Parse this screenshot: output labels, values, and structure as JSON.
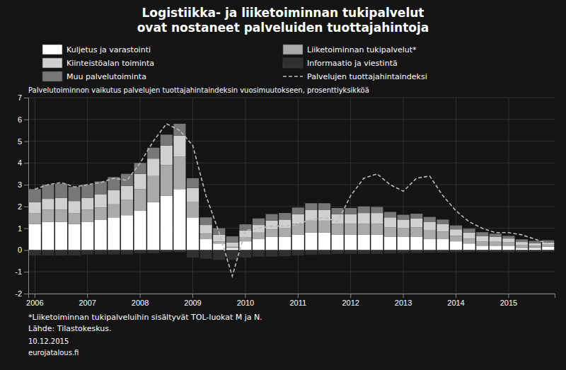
{
  "chart_data": {
    "type": "bar",
    "stacked": true,
    "grid": true,
    "title": "Logistiikka- ja liiketoiminnan tukipalvelut\novat nostaneet palveluiden tuottajahintoja",
    "subtitle": "Palvelutoiminnon vaikutus palvelujen tuottajahintaindeksin vuosimuutokseen, prosenttiyksikköä",
    "annotations": [
      "*Liiketoiminnan tukipalveluihin sisältyvät TOL-luokat M ja N.",
      "Lähde: Tilastokeskus.",
      "10.12.2015",
      "eurojatalous.fi"
    ],
    "categories": [
      "2006",
      null,
      null,
      null,
      "2007",
      null,
      null,
      null,
      "2008",
      null,
      null,
      null,
      "2009",
      null,
      null,
      null,
      "2010",
      null,
      null,
      null,
      "2011",
      null,
      null,
      null,
      "2012",
      null,
      null,
      null,
      "2013",
      null,
      null,
      null,
      "2014",
      null,
      null,
      null,
      "2015",
      null,
      null,
      null
    ],
    "ylim": [
      -2,
      7
    ],
    "yticks": [
      -2,
      -1,
      0,
      1,
      2,
      3,
      4,
      5,
      6,
      7
    ],
    "series": [
      {
        "name": "Kuljetus ja varastointi",
        "type": "bar",
        "color": "#ffffff",
        "values": [
          1.2,
          1.3,
          1.3,
          1.2,
          1.3,
          1.4,
          1.5,
          1.6,
          1.8,
          2.2,
          2.5,
          2.8,
          1.5,
          0.5,
          0.3,
          0.1,
          0.4,
          0.5,
          0.6,
          0.6,
          0.7,
          0.8,
          0.8,
          0.7,
          0.7,
          0.7,
          0.7,
          0.6,
          0.6,
          0.6,
          0.5,
          0.5,
          0.4,
          0.3,
          0.2,
          0.2,
          0.2,
          0.1,
          0.1,
          0.15
        ]
      },
      {
        "name": "Liiketoiminnan tukipalvelut*",
        "type": "bar",
        "color": "#aaaaaa",
        "values": [
          0.5,
          0.55,
          0.55,
          0.5,
          0.55,
          0.55,
          0.6,
          0.7,
          1.0,
          1.2,
          1.4,
          1.5,
          0.7,
          0.25,
          0.1,
          0.05,
          0.2,
          0.3,
          0.35,
          0.4,
          0.5,
          0.55,
          0.55,
          0.5,
          0.5,
          0.5,
          0.5,
          0.45,
          0.4,
          0.45,
          0.4,
          0.35,
          0.25,
          0.22,
          0.2,
          0.18,
          0.15,
          0.12,
          0.1,
          0.1
        ]
      },
      {
        "name": "Kiinteistöalan toiminta",
        "type": "bar",
        "color": "#d0d0d0",
        "values": [
          0.5,
          0.5,
          0.55,
          0.55,
          0.55,
          0.6,
          0.65,
          0.65,
          0.7,
          0.8,
          0.9,
          0.95,
          0.65,
          0.4,
          0.3,
          0.2,
          0.3,
          0.35,
          0.4,
          0.4,
          0.45,
          0.5,
          0.5,
          0.45,
          0.45,
          0.5,
          0.5,
          0.45,
          0.4,
          0.4,
          0.4,
          0.35,
          0.3,
          0.28,
          0.25,
          0.22,
          0.18,
          0.15,
          0.12,
          0.1
        ]
      },
      {
        "name": "Informaatio ja viestintä",
        "type": "bar",
        "color": "#303030",
        "values": [
          -0.25,
          -0.25,
          -0.25,
          -0.25,
          -0.2,
          -0.2,
          -0.2,
          -0.2,
          -0.15,
          -0.15,
          -0.1,
          -0.1,
          -0.35,
          -0.4,
          -0.45,
          -0.45,
          -0.35,
          -0.3,
          -0.3,
          -0.28,
          -0.25,
          -0.22,
          -0.2,
          -0.18,
          -0.18,
          -0.18,
          -0.18,
          -0.16,
          -0.14,
          -0.14,
          -0.12,
          -0.12,
          -0.1,
          -0.1,
          -0.1,
          -0.1,
          -0.1,
          -0.1,
          -0.08,
          -0.08
        ]
      },
      {
        "name": "Muu palvelutoiminta",
        "type": "bar",
        "color": "#777777",
        "values": [
          0.6,
          0.65,
          0.65,
          0.65,
          0.6,
          0.6,
          0.6,
          0.55,
          0.5,
          0.5,
          0.5,
          0.55,
          0.45,
          0.35,
          0.3,
          0.28,
          0.28,
          0.3,
          0.3,
          0.3,
          0.3,
          0.3,
          0.3,
          0.28,
          0.28,
          0.3,
          0.28,
          0.25,
          0.22,
          0.22,
          0.22,
          0.2,
          0.18,
          0.18,
          0.17,
          0.15,
          0.12,
          0.12,
          0.1,
          0.1
        ]
      },
      {
        "name": "Palvelujen tuottajahintaindeksi",
        "type": "line",
        "line_style": "dashed",
        "color": "#bbbbbb",
        "values": [
          2.8,
          3.0,
          3.1,
          2.9,
          3.0,
          3.1,
          3.3,
          3.2,
          4.0,
          5.0,
          5.8,
          5.5,
          4.8,
          2.5,
          0.8,
          -1.2,
          0.9,
          1.0,
          1.1,
          1.1,
          1.2,
          1.4,
          1.5,
          1.3,
          2.5,
          3.3,
          3.5,
          3.0,
          2.7,
          3.3,
          3.4,
          2.5,
          1.8,
          1.3,
          1.0,
          0.8,
          0.8,
          0.7,
          0.5,
          0.3
        ]
      }
    ]
  }
}
